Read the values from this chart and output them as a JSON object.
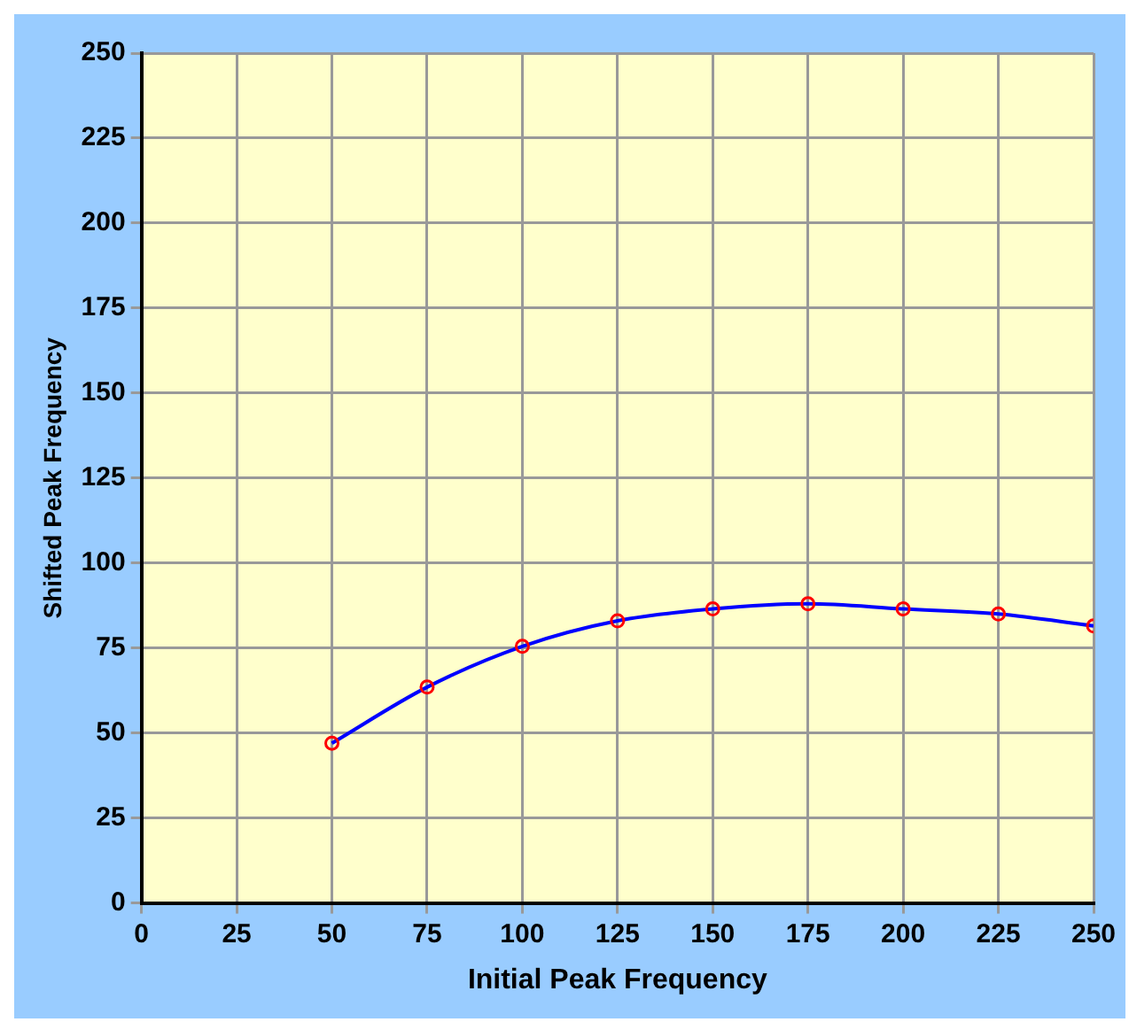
{
  "chart_data": {
    "type": "line",
    "xlabel": "Initial Peak Frequency",
    "ylabel": "Shifted Peak Frequency",
    "x": [
      50,
      75,
      100,
      125,
      150,
      175,
      200,
      225,
      250
    ],
    "series": [
      {
        "color": "#0000ff",
        "values": [
          47,
          63.5,
          75.5,
          83,
          86.5,
          88,
          86.5,
          85,
          81.5
        ]
      }
    ],
    "xlim": [
      0,
      250
    ],
    "xticks": [
      0,
      25,
      50,
      75,
      100,
      125,
      150,
      175,
      200,
      225,
      250
    ],
    "ylim": [
      0,
      250
    ],
    "yticks": [
      0,
      25,
      50,
      75,
      100,
      125,
      150,
      175,
      200,
      225,
      250
    ],
    "grid": true,
    "legend": false,
    "marker": "circle",
    "line_style": "solid"
  }
}
